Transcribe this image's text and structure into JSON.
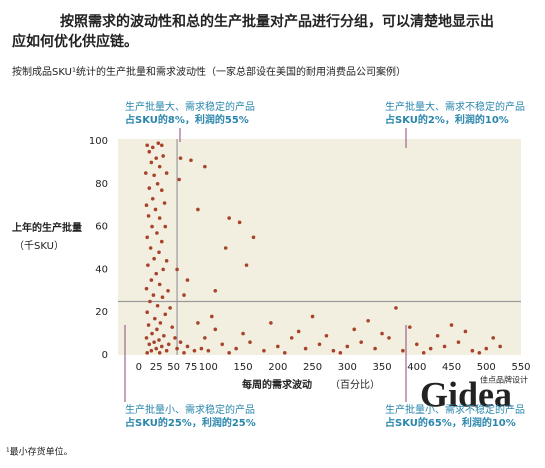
{
  "chart_data": {
    "type": "scatter",
    "title": [
      "按照需求的波动性和总的生产批量对产品进行分组，可以清楚地显示出",
      "应如何优化供应链。"
    ],
    "subtitle": "按制成品SKU¹统计的生产批量和需求波动性（一家总部设在美国的耐用消费品公司案例）",
    "y_label": [
      "上年的生产批量",
      "（千SKU）"
    ],
    "x_label": [
      "每周的需求波动",
      "（百分比）"
    ],
    "footnote": "¹最小存货单位。",
    "watermark": {
      "brand": "Gidea",
      "text": "佳点品牌设计"
    },
    "color": "#a8432b",
    "xlim": [
      -30,
      550
    ],
    "ylim": [
      0,
      100
    ],
    "xticks": [
      0,
      25,
      50,
      75,
      100,
      150,
      200,
      250,
      300,
      350,
      400,
      450,
      500,
      550
    ],
    "yticks": [
      0,
      20,
      40,
      60,
      80,
      100
    ],
    "ref_x": 55,
    "ref_y": 25,
    "annotations": [
      {
        "corner": "top-left",
        "lines": [
          "生产批量大、需求稳定的产品",
          "占SKU的8%，利润的55%"
        ]
      },
      {
        "corner": "top-right",
        "lines": [
          "生产批量大、需求不稳定的产品",
          "占SKU的2%，利润的10%"
        ]
      },
      {
        "corner": "bottom-left",
        "lines": [
          "生产批量小、需求稳定的产品",
          "占SKU的25%，利润的25%"
        ]
      },
      {
        "corner": "bottom-right",
        "lines": [
          "生产批量小、需求不稳定的产品",
          "占SKU的65%，利润的10%"
        ]
      }
    ],
    "x": [
      12,
      20,
      28,
      33,
      15,
      25,
      35,
      18,
      30,
      10,
      22,
      40,
      27,
      15,
      33,
      20,
      11,
      37,
      24,
      14,
      30,
      19,
      38,
      26,
      12,
      33,
      17,
      29,
      22,
      40,
      13,
      35,
      25,
      18,
      30,
      11,
      42,
      21,
      34,
      16,
      27,
      45,
      12,
      38,
      23,
      31,
      14,
      48,
      26,
      19,
      36,
      11,
      52,
      29,
      22,
      43,
      15,
      60,
      33,
      25,
      70,
      18,
      40,
      55,
      80,
      12,
      65,
      90,
      30,
      100,
      60,
      75,
      58,
      95,
      85,
      130,
      145,
      125,
      165,
      155,
      55,
      70,
      110,
      65,
      120,
      140,
      160,
      180,
      200,
      220,
      240,
      260,
      280,
      300,
      320,
      340,
      360,
      370,
      380,
      400,
      420,
      440,
      460,
      480,
      500,
      520,
      110,
      150,
      190,
      230,
      270,
      310,
      350,
      390,
      430,
      470,
      510,
      130,
      210,
      290,
      410,
      490,
      250,
      330,
      450,
      85,
      95,
      105
    ],
    "y": [
      98,
      97,
      99,
      98,
      95,
      92,
      93,
      90,
      88,
      85,
      84,
      85,
      80,
      78,
      77,
      73,
      70,
      71,
      68,
      65,
      64,
      60,
      60,
      57,
      55,
      53,
      50,
      48,
      45,
      44,
      42,
      40,
      38,
      35,
      33,
      31,
      30,
      28,
      27,
      25,
      23,
      22,
      20,
      19,
      17,
      15,
      14,
      13,
      12,
      10,
      9,
      8,
      8,
      7,
      6,
      5,
      5,
      6,
      4,
      3,
      4,
      2,
      2,
      3,
      2,
      1,
      1,
      3,
      1,
      2,
      92,
      91,
      82,
      88,
      68,
      64,
      62,
      50,
      55,
      42,
      40,
      35,
      30,
      28,
      5,
      3,
      6,
      2,
      4,
      8,
      3,
      5,
      2,
      4,
      6,
      3,
      8,
      22,
      2,
      5,
      3,
      4,
      6,
      2,
      3,
      4,
      12,
      10,
      15,
      11,
      9,
      12,
      10,
      13,
      9,
      11,
      8,
      1,
      1,
      1,
      1,
      1,
      18,
      16,
      14,
      15,
      8,
      18
    ]
  }
}
